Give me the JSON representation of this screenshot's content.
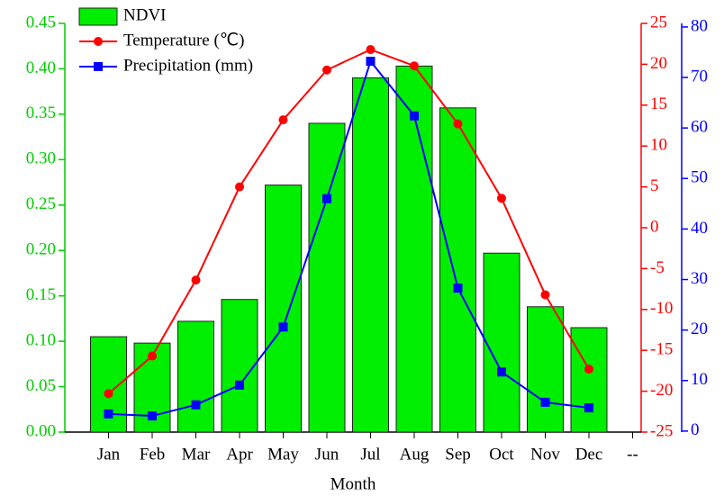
{
  "chart_data": {
    "type": "bar",
    "x_label": "Month",
    "categories": [
      "Jan",
      "Feb",
      "Mar",
      "Apr",
      "May",
      "Jun",
      "Jul",
      "Aug",
      "Sep",
      "Oct",
      "Nov",
      "Dec",
      "--"
    ],
    "series": [
      {
        "name": "NDVI",
        "type": "bar",
        "color": "#00ee00",
        "values": [
          0.105,
          0.098,
          0.122,
          0.146,
          0.272,
          0.34,
          0.39,
          0.403,
          0.357,
          0.197,
          0.138,
          0.115,
          null
        ]
      },
      {
        "name": "Temperature (℃)",
        "type": "line",
        "axis": "y2",
        "color": "#ff0000",
        "values": [
          -20.3,
          -15.7,
          -6.4,
          5.0,
          13.2,
          19.3,
          21.8,
          19.8,
          12.7,
          3.6,
          -8.2,
          -17.3,
          null
        ]
      },
      {
        "name": "Precipitation (mm)",
        "type": "line",
        "axis": "y3",
        "color": "#0000ff",
        "values": [
          3.4,
          3.0,
          5.2,
          9.1,
          20.6,
          46.0,
          73.2,
          62.4,
          28.3,
          11.7,
          5.7,
          4.6,
          null
        ]
      }
    ],
    "ylim": [
      0,
      0.45
    ],
    "ycolor": "#00cc00",
    "yticks": [
      {
        "value": 0,
        "label": "0.00"
      },
      {
        "value": 0.05,
        "label": "0.05"
      },
      {
        "value": 0.1,
        "label": "0.10"
      },
      {
        "value": 0.15,
        "label": "0.15"
      },
      {
        "value": 0.2,
        "label": "0.20"
      },
      {
        "value": 0.25,
        "label": "0.25"
      },
      {
        "value": 0.3,
        "label": "0.30"
      },
      {
        "value": 0.35,
        "label": "0.35"
      },
      {
        "value": 0.4,
        "label": "0.40"
      },
      {
        "value": 0.45,
        "label": "0.45"
      }
    ],
    "y2lim": [
      -25,
      25
    ],
    "y2ticks": [
      -25,
      -20,
      -15,
      -10,
      -5,
      0,
      5,
      10,
      15,
      20,
      25
    ],
    "y3lim": [
      -0.2,
      80.7
    ],
    "y3ticks": [
      0,
      10,
      20,
      30,
      40,
      50,
      60,
      70,
      80
    ]
  }
}
